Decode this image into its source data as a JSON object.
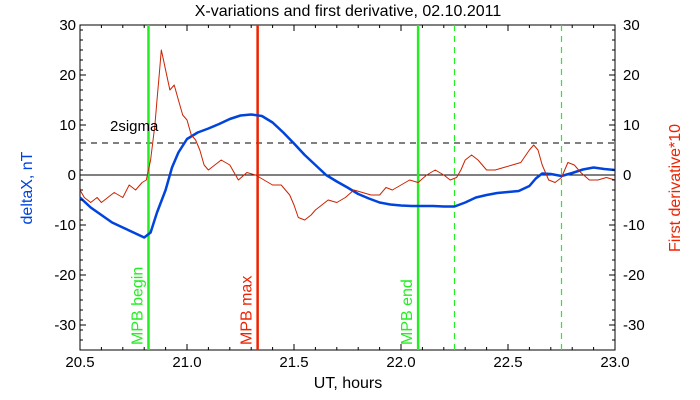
{
  "chart_data": {
    "type": "line",
    "title": "X-variations and first derivative, 02.10.2011",
    "xlabel": "UT, hours",
    "ylabel_left": "deltaX, nT",
    "ylabel_right": "First derivative*10",
    "xlim": [
      20.5,
      23.0
    ],
    "ylim": [
      -35,
      30
    ],
    "xticks": [
      "20.5",
      "21.0",
      "21.5",
      "22.0",
      "22.5",
      "23.0"
    ],
    "xtick_values": [
      20.5,
      21.0,
      21.5,
      22.0,
      22.5,
      23.0
    ],
    "yticks": [
      "30",
      "20",
      "10",
      "0",
      "-10",
      "-20",
      "-30"
    ],
    "ytick_values": [
      30,
      20,
      10,
      0,
      -10,
      -20,
      -30
    ],
    "colors": {
      "deltaX": "#0044dd",
      "derivative": "#cc2200",
      "mpb_green": "#22ee22",
      "mpb_red": "#ee2200",
      "left_label": "#0044dd",
      "right_label": "#ee2200"
    },
    "sigma_level": 6.4,
    "sigma_label": "2sigma",
    "vertical_markers": [
      {
        "x": 20.82,
        "label": "MPB begin",
        "color": "#22ee22",
        "style": "solid"
      },
      {
        "x": 21.33,
        "label": "MPB max",
        "color": "#ee2200",
        "style": "solid"
      },
      {
        "x": 22.08,
        "label": "MPB end",
        "color": "#22ee22",
        "style": "solid"
      },
      {
        "x": 22.25,
        "label": "",
        "color": "#22ee22",
        "style": "dashed"
      },
      {
        "x": 22.75,
        "label": "",
        "color": "#22ee22",
        "style": "dashed"
      }
    ],
    "series": [
      {
        "name": "deltaX",
        "color": "#0044dd",
        "x": [
          20.5,
          20.55,
          20.6,
          20.65,
          20.7,
          20.75,
          20.8,
          20.83,
          20.86,
          20.9,
          20.93,
          20.96,
          21.0,
          21.05,
          21.1,
          21.15,
          21.2,
          21.25,
          21.3,
          21.35,
          21.4,
          21.45,
          21.5,
          21.55,
          21.6,
          21.65,
          21.7,
          21.75,
          21.8,
          21.85,
          21.9,
          21.95,
          22.0,
          22.05,
          22.1,
          22.15,
          22.2,
          22.25,
          22.3,
          22.35,
          22.4,
          22.45,
          22.5,
          22.55,
          22.6,
          22.63,
          22.66,
          22.7,
          22.75,
          22.8,
          22.85,
          22.9,
          22.95,
          23.0
        ],
        "values": [
          -4.5,
          -6.5,
          -8,
          -9.5,
          -10.5,
          -11.5,
          -12.5,
          -11.5,
          -7.5,
          -3,
          1.5,
          4.5,
          7.2,
          8.5,
          9.3,
          10.2,
          11.2,
          11.9,
          12.1,
          11.8,
          10.5,
          8.5,
          6.3,
          4,
          2,
          0,
          -1.3,
          -2.5,
          -3.8,
          -4.7,
          -5.5,
          -5.9,
          -6.1,
          -6.2,
          -6.2,
          -6.2,
          -6.3,
          -6.3,
          -5.5,
          -4.5,
          -4,
          -3.6,
          -3.4,
          -3.2,
          -2.2,
          -0.7,
          0.3,
          0.2,
          -0.2,
          0.4,
          1.1,
          1.5,
          1.2,
          1.0
        ]
      },
      {
        "name": "First derivative*10",
        "color": "#cc2200",
        "x": [
          20.5,
          20.52,
          20.55,
          20.58,
          20.6,
          20.63,
          20.66,
          20.7,
          20.73,
          20.76,
          20.79,
          20.81,
          20.83,
          20.85,
          20.86,
          20.87,
          20.88,
          20.89,
          20.9,
          20.92,
          20.94,
          20.96,
          20.98,
          21.0,
          21.02,
          21.04,
          21.06,
          21.08,
          21.1,
          21.13,
          21.16,
          21.2,
          21.24,
          21.28,
          21.32,
          21.36,
          21.4,
          21.44,
          21.48,
          21.5,
          21.52,
          21.55,
          21.58,
          21.6,
          21.63,
          21.66,
          21.7,
          21.74,
          21.78,
          21.82,
          21.86,
          21.9,
          21.93,
          21.96,
          22.0,
          22.04,
          22.08,
          22.12,
          22.16,
          22.2,
          22.23,
          22.26,
          22.28,
          22.3,
          22.33,
          22.36,
          22.4,
          22.44,
          22.48,
          22.52,
          22.56,
          22.6,
          22.62,
          22.64,
          22.66,
          22.69,
          22.72,
          22.75,
          22.78,
          22.81,
          22.84,
          22.88,
          22.92,
          22.96,
          23.0
        ],
        "values": [
          -3,
          -4.5,
          -5.5,
          -4.5,
          -5.5,
          -4.5,
          -3.5,
          -4.5,
          -2,
          -3,
          -1.5,
          -1,
          3,
          10,
          15,
          20,
          25,
          23,
          21,
          17,
          18,
          15,
          12,
          11,
          8,
          7,
          5,
          2,
          1,
          2,
          3,
          2,
          -1,
          0.5,
          0,
          -1,
          -2,
          -2,
          -4,
          -6,
          -8.5,
          -9,
          -8,
          -7,
          -6,
          -5,
          -5.5,
          -4.5,
          -3,
          -3.5,
          -4,
          -4,
          -2.5,
          -3,
          -2,
          -1,
          -1.5,
          0,
          1,
          0,
          -1,
          -0.5,
          1,
          3,
          4,
          3,
          1,
          1,
          1.5,
          2,
          2.5,
          5,
          6,
          5,
          2,
          -1,
          -1.5,
          -0.5,
          2.5,
          2,
          0.5,
          -1,
          -1,
          -0.5,
          -1
        ]
      }
    ]
  }
}
